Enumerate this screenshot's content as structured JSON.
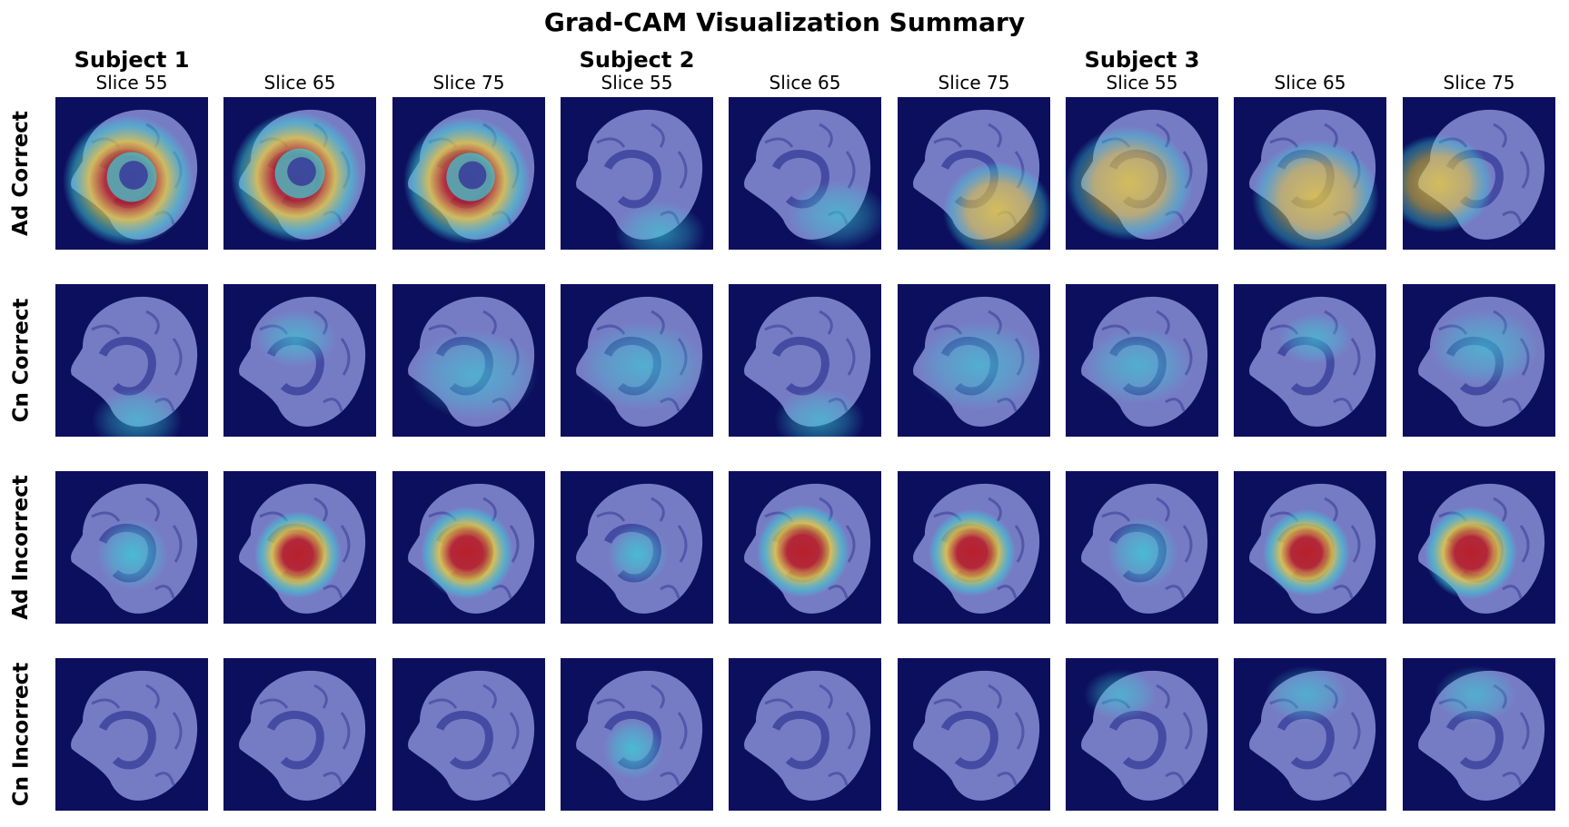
{
  "title": "Grad-CAM Visualization Summary",
  "subjects": [
    "Subject 1",
    "Subject 2",
    "Subject 3"
  ],
  "slices": [
    "Slice 55",
    "Slice 65",
    "Slice 75"
  ],
  "rows": [
    "Ad Correct",
    "Cn Correct",
    "Ad Incorrect",
    "Cn Incorrect"
  ],
  "colors": {
    "background": "#0c0f5e",
    "brain": "#8a8fd6",
    "brain_dark": "#3a3f9a",
    "heat_hot": "#c0151a",
    "heat_warm": "#f2d23a",
    "heat_cool": "#3ad0d8"
  }
}
